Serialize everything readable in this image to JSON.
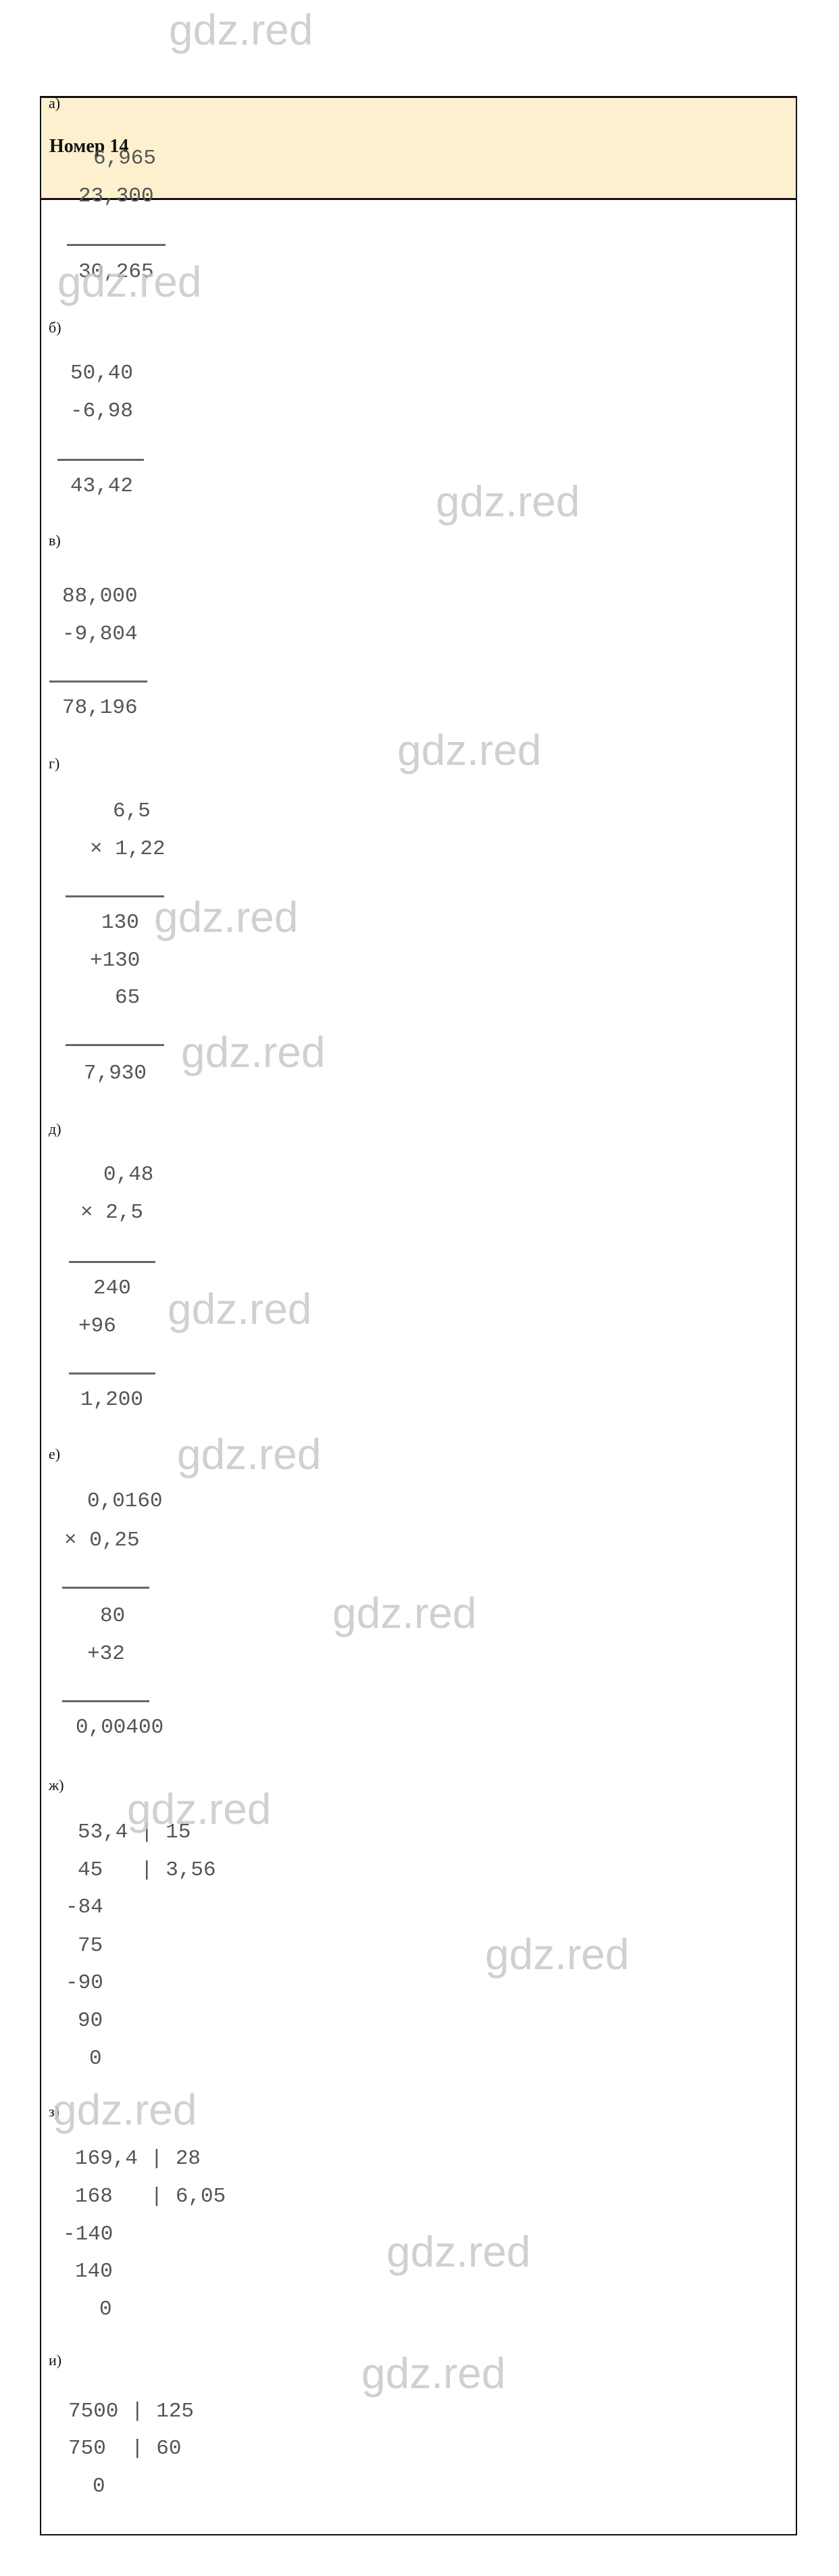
{
  "header": {
    "title": "Номер 14"
  },
  "watermark": "gdz.red",
  "parts": [
    {
      "label": "а)",
      "lines": [
        "6,965",
        "23,300",
        "30,265"
      ]
    },
    {
      "label": "б)",
      "lines": [
        "50,40",
        "-6,98",
        "43,42"
      ]
    },
    {
      "label": "в)",
      "lines": [
        "88,000",
        "-9,804",
        "78,196"
      ]
    },
    {
      "label": "г)",
      "lines": [
        "6,5",
        "× 1,22",
        "130",
        "+130",
        "65",
        "7,930"
      ]
    },
    {
      "label": "д)",
      "lines": [
        "0,48",
        "× 2,5",
        "240",
        "+96",
        "1,200"
      ]
    },
    {
      "label": "е)",
      "lines": [
        "0,0160",
        "× 0,25",
        "80",
        "+32",
        "0,00400"
      ]
    },
    {
      "label": "ж)",
      "lines": [
        "53,4 | 15",
        "45   | 3,56",
        "-84",
        "75",
        "-90",
        "90",
        "0"
      ]
    },
    {
      "label": "з)",
      "lines": [
        "169,4 | 28",
        "168   | 6,05",
        "-140",
        "140",
        "0"
      ]
    },
    {
      "label": "и)",
      "lines": [
        "7500 | 125",
        "750  | 60",
        "0"
      ]
    }
  ]
}
